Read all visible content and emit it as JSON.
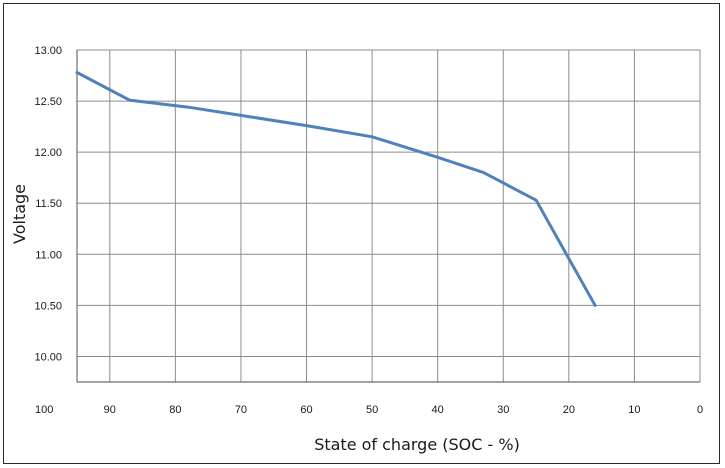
{
  "chart_data": {
    "type": "line",
    "title": "",
    "xlabel": "State of charge (SOC - %)",
    "ylabel": "Voltage",
    "x_reversed": true,
    "xlim": [
      95,
      0
    ],
    "ylim": [
      9.75,
      13.0
    ],
    "x_ticks": [
      {
        "value": 100,
        "label": "100"
      },
      {
        "value": 90,
        "label": "90"
      },
      {
        "value": 80,
        "label": "80"
      },
      {
        "value": 70,
        "label": "70"
      },
      {
        "value": 60,
        "label": "60"
      },
      {
        "value": 50,
        "label": "50"
      },
      {
        "value": 40,
        "label": "40"
      },
      {
        "value": 30,
        "label": "30"
      },
      {
        "value": 20,
        "label": "20"
      },
      {
        "value": 10,
        "label": "10"
      },
      {
        "value": 0,
        "label": "0"
      }
    ],
    "y_ticks": [
      {
        "value": 13.0,
        "label": "13.00"
      },
      {
        "value": 12.5,
        "label": "12.50"
      },
      {
        "value": 12.0,
        "label": "12.00"
      },
      {
        "value": 11.5,
        "label": "11.50"
      },
      {
        "value": 11.0,
        "label": "11.00"
      },
      {
        "value": 10.5,
        "label": "10.50"
      },
      {
        "value": 10.0,
        "label": "10.00"
      }
    ],
    "grid": true,
    "legend": "none",
    "series": [
      {
        "color": "#4f81bd",
        "points": [
          {
            "x": 95,
            "y": 12.78
          },
          {
            "x": 87,
            "y": 12.51
          },
          {
            "x": 78,
            "y": 12.44
          },
          {
            "x": 70,
            "y": 12.36
          },
          {
            "x": 60,
            "y": 12.26
          },
          {
            "x": 50,
            "y": 12.15
          },
          {
            "x": 40,
            "y": 11.95
          },
          {
            "x": 33,
            "y": 11.8
          },
          {
            "x": 25,
            "y": 11.53
          },
          {
            "x": 16,
            "y": 10.5
          }
        ]
      }
    ]
  }
}
